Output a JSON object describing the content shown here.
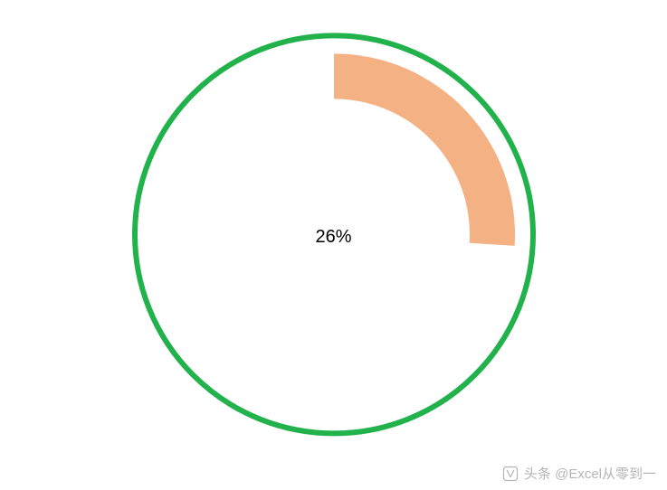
{
  "chart": {
    "type": "donut-progress",
    "percentage": 26,
    "label": "26%",
    "label_fontsize": 20,
    "label_color": "#000000",
    "start_angle_deg": -90,
    "sweep_direction": "clockwise",
    "outer_circle": {
      "radius": 220,
      "stroke_color": "#22b24c",
      "stroke_width": 6,
      "fill": "#ffffff"
    },
    "arc": {
      "outer_radius": 200,
      "inner_radius": 150,
      "fill_color": "#f4b183"
    },
    "background_color": "#ffffff"
  },
  "watermark": {
    "text": "头条 @Excel从零到一",
    "icon_color": "rgba(120,120,120,0.55)"
  }
}
